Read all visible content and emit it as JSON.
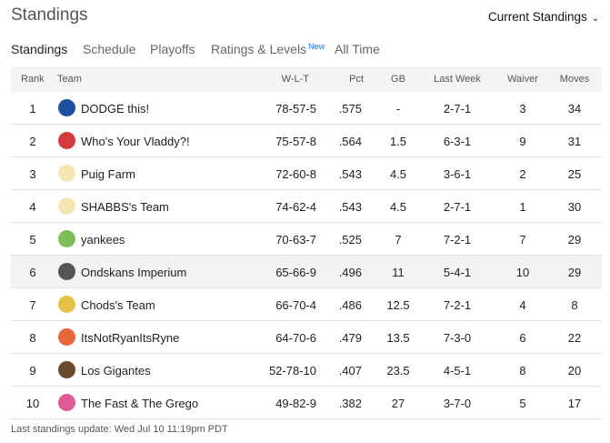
{
  "header": {
    "title": "Standings",
    "dropdown": "Current Standings"
  },
  "tabs": [
    {
      "label": "Standings"
    },
    {
      "label": "Schedule"
    },
    {
      "label": "Playoffs"
    },
    {
      "label": "Ratings & Levels",
      "badge": "New"
    },
    {
      "label": "All Time"
    }
  ],
  "table": {
    "columns": [
      "Rank",
      "Team",
      "W-L-T",
      "Pct",
      "GB",
      "Last Week",
      "Waiver",
      "Moves"
    ],
    "rows": [
      {
        "rank": "1",
        "team": "DODGE this!",
        "wlt": "78-57-5",
        "pct": ".575",
        "gb": "-",
        "last_week": "2-7-1",
        "waiver": "3",
        "moves": "34"
      },
      {
        "rank": "2",
        "team": "Who's Your Vladdy?!",
        "wlt": "75-57-8",
        "pct": ".564",
        "gb": "1.5",
        "last_week": "6-3-1",
        "waiver": "9",
        "moves": "31"
      },
      {
        "rank": "3",
        "team": "Puig Farm",
        "wlt": "72-60-8",
        "pct": ".543",
        "gb": "4.5",
        "last_week": "3-6-1",
        "waiver": "2",
        "moves": "25"
      },
      {
        "rank": "4",
        "team": "SHABBS's Team",
        "wlt": "74-62-4",
        "pct": ".543",
        "gb": "4.5",
        "last_week": "2-7-1",
        "waiver": "1",
        "moves": "30"
      },
      {
        "rank": "5",
        "team": "yankees",
        "wlt": "70-63-7",
        "pct": ".525",
        "gb": "7",
        "last_week": "7-2-1",
        "waiver": "7",
        "moves": "29"
      },
      {
        "rank": "6",
        "team": "Ondskans Imperium",
        "wlt": "65-66-9",
        "pct": ".496",
        "gb": "11",
        "last_week": "5-4-1",
        "waiver": "10",
        "moves": "29"
      },
      {
        "rank": "7",
        "team": "Chods's Team",
        "wlt": "66-70-4",
        "pct": ".486",
        "gb": "12.5",
        "last_week": "7-2-1",
        "waiver": "4",
        "moves": "8"
      },
      {
        "rank": "8",
        "team": "ItsNotRyanItsRyne",
        "wlt": "64-70-6",
        "pct": ".479",
        "gb": "13.5",
        "last_week": "7-3-0",
        "waiver": "6",
        "moves": "22"
      },
      {
        "rank": "9",
        "team": "Los Gigantes",
        "wlt": "52-78-10",
        "pct": ".407",
        "gb": "23.5",
        "last_week": "4-5-1",
        "waiver": "8",
        "moves": "20"
      },
      {
        "rank": "10",
        "team": "The Fast & The Grego",
        "wlt": "49-82-9",
        "pct": ".382",
        "gb": "27",
        "last_week": "3-7-0",
        "waiver": "5",
        "moves": "17"
      }
    ]
  },
  "footer": "Last standings update: Wed Jul 10 11:19pm PDT"
}
